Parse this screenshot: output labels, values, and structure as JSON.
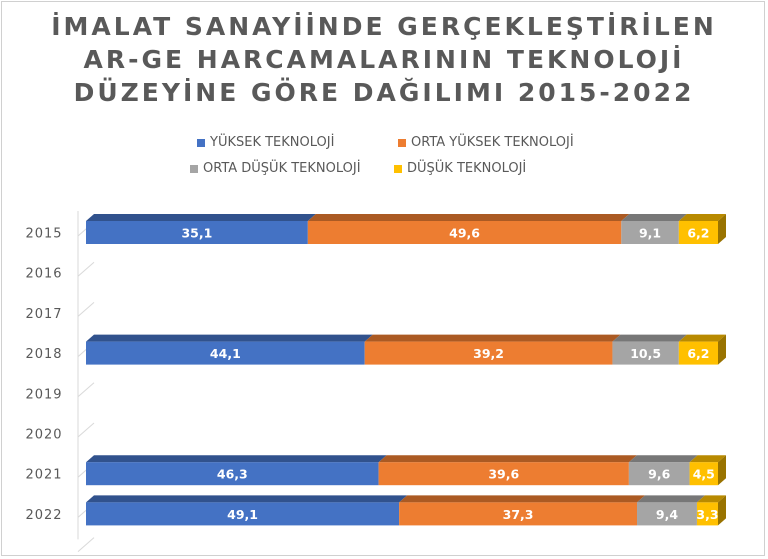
{
  "title": "İMALAT SANAYİİNDE GERÇEKLEŞTİRİLEN\nAR-GE HARCAMALARININ TEKNOLOJİ\nDÜZEYİNE GÖRE DAĞILIMI  2015-2022",
  "colors": {
    "yuksek": "#4472C4",
    "orta_yuksek": "#ED7D31",
    "orta_dusuk": "#A5A5A5",
    "dusuk": "#FFC000"
  },
  "chart_data": {
    "type": "bar",
    "orientation": "horizontal",
    "stacked": "100%",
    "three_d": true,
    "title": "İMALAT SANAYİİNDE GERÇEKLEŞTİRİLEN AR-GE HARCAMALARININ TEKNOLOJİ DÜZEYİNE GÖRE DAĞILIMI  2015-2022",
    "categories": [
      "2015",
      "2016",
      "2017",
      "2018",
      "2019",
      "2020",
      "2021",
      "2022"
    ],
    "legend_position": "top",
    "grid": false,
    "series": [
      {
        "name": "YÜKSEK TEKNOLOJİ",
        "values": [
          35.1,
          null,
          null,
          44.1,
          null,
          null,
          46.3,
          49.1
        ],
        "labels": [
          "35,1",
          "",
          "",
          "44,1",
          "",
          "",
          "46,3",
          "49,1"
        ]
      },
      {
        "name": "ORTA YÜKSEK TEKNOLOJİ",
        "values": [
          49.6,
          null,
          null,
          39.2,
          null,
          null,
          39.6,
          37.3
        ],
        "labels": [
          "49,6",
          "",
          "",
          "39,2",
          "",
          "",
          "39,6",
          "37,3"
        ]
      },
      {
        "name": "ORTA DÜŞÜK TEKNOLOJİ",
        "values": [
          9.1,
          null,
          null,
          10.5,
          null,
          null,
          9.6,
          9.4
        ],
        "labels": [
          "9,1",
          "",
          "",
          "10,5",
          "",
          "",
          "9,6",
          "9,4"
        ]
      },
      {
        "name": "DÜŞÜK TEKNOLOJİ",
        "values": [
          6.2,
          null,
          null,
          6.2,
          null,
          null,
          4.5,
          3.3
        ],
        "labels": [
          "6,2",
          "",
          "",
          "6,2",
          "",
          "",
          "4,5",
          "3,3"
        ]
      }
    ]
  }
}
